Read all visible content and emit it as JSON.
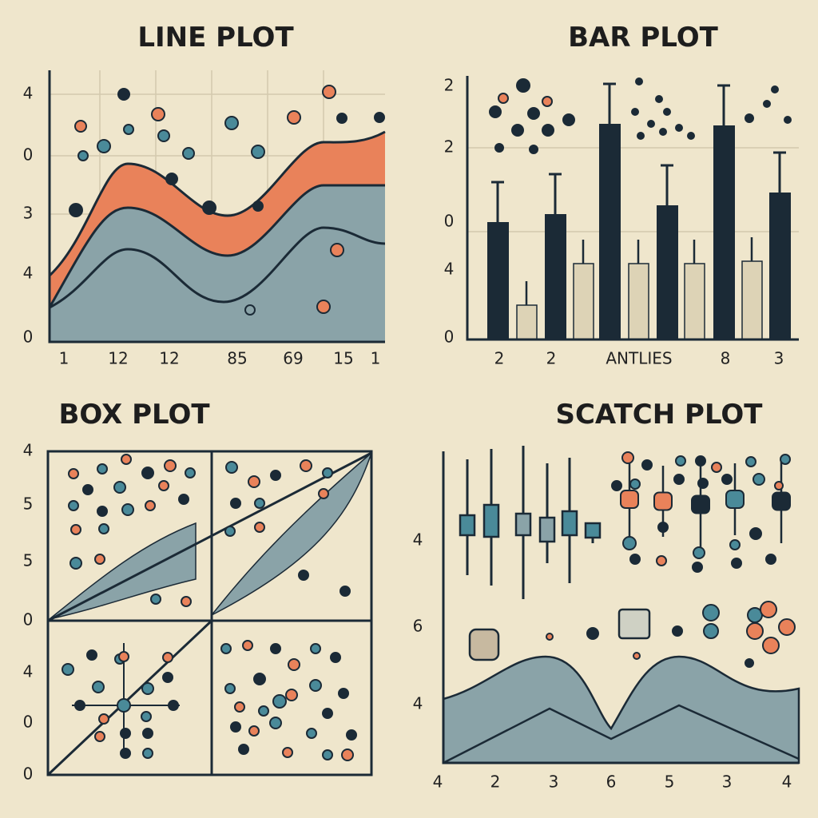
{
  "panels": [
    {
      "title": "LINE PLOT",
      "y_labels": [
        "4",
        "0",
        "3",
        "4",
        "0"
      ],
      "x_labels": [
        "1",
        "12",
        "12",
        "85",
        "69",
        "15",
        "1"
      ]
    },
    {
      "title": "BAR PLOT",
      "y_labels": [
        "2",
        "2",
        "0",
        "4",
        "0"
      ],
      "x_labels": [
        "2",
        "2",
        "ANTLIES",
        "8",
        "3"
      ]
    },
    {
      "title": "BOX PLOT",
      "y_labels": [
        "4",
        "5",
        "5",
        "0",
        "4",
        "0",
        "0"
      ]
    },
    {
      "title": "SCATCH PLOT",
      "y_labels": [
        "4",
        "6",
        "4"
      ],
      "x_labels": [
        "4",
        "2",
        "3",
        "6",
        "5",
        "3",
        "4"
      ]
    }
  ]
}
